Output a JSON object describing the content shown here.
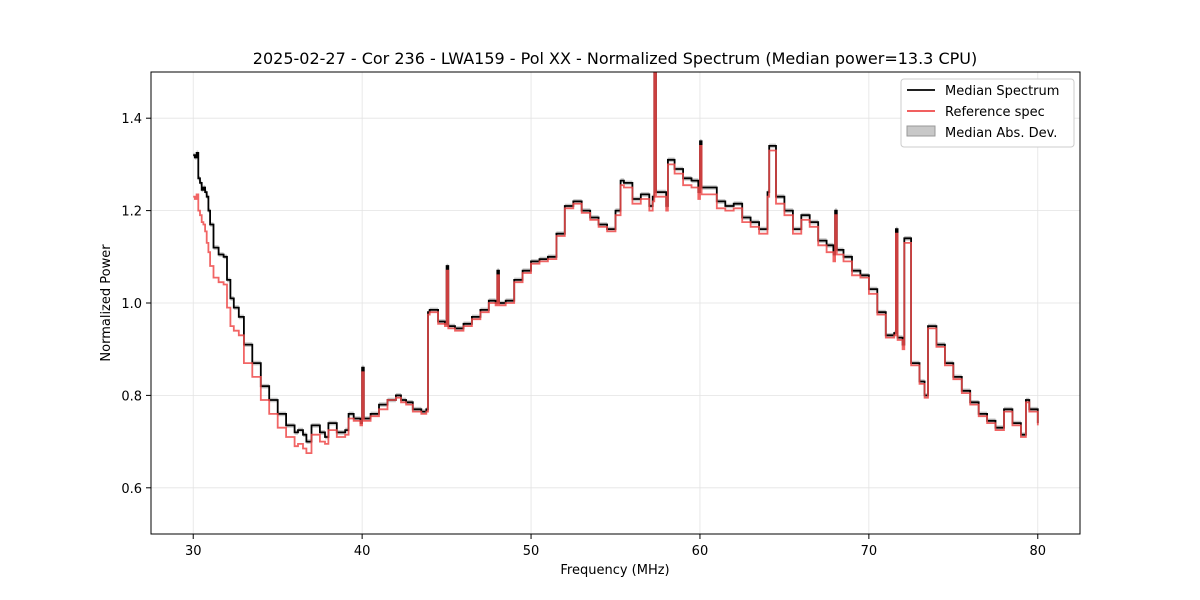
{
  "chart_data": {
    "type": "line",
    "title": "2025-02-27 - Cor 236 - LWA159 - Pol XX - Normalized Spectrum (Median power=13.3 CPU)",
    "xlabel": "Frequency (MHz)",
    "ylabel": "Normalized Power",
    "xlim": [
      27.5,
      82.5
    ],
    "ylim": [
      0.5,
      1.5
    ],
    "xticks": [
      30,
      40,
      50,
      60,
      70,
      80
    ],
    "yticks": [
      0.6,
      0.8,
      1.0,
      1.2,
      1.4
    ],
    "xtick_labels": [
      "30",
      "40",
      "50",
      "60",
      "70",
      "80"
    ],
    "ytick_labels": [
      "0.6",
      "0.8",
      "1.0",
      "1.2",
      "1.4"
    ],
    "grid": true,
    "legend_position": "top-right",
    "mad_halfwidth": 0.005,
    "series": [
      {
        "name": "Median Spectrum",
        "color": "#000000",
        "x": [
          30.0,
          30.1,
          30.2,
          30.3,
          30.4,
          30.5,
          30.6,
          30.7,
          30.8,
          30.9,
          31.0,
          31.2,
          31.5,
          31.8,
          32.0,
          32.2,
          32.4,
          32.7,
          33.0,
          33.5,
          34.0,
          34.5,
          35.0,
          35.5,
          36.0,
          36.2,
          36.5,
          36.7,
          37.0,
          37.5,
          37.8,
          38.0,
          38.5,
          39.0,
          39.2,
          39.5,
          39.9,
          40.0,
          40.1,
          40.5,
          41.0,
          41.5,
          42.0,
          42.3,
          42.6,
          43.0,
          43.5,
          43.8,
          43.9,
          44.0,
          44.5,
          44.9,
          45.0,
          45.1,
          45.5,
          46.0,
          46.5,
          47.0,
          47.5,
          47.9,
          48.0,
          48.1,
          48.5,
          49.0,
          49.5,
          50.0,
          50.5,
          51.0,
          51.5,
          52.0,
          52.5,
          53.0,
          53.5,
          54.0,
          54.5,
          55.0,
          55.3,
          55.5,
          56.0,
          56.5,
          57.0,
          57.2,
          57.3,
          57.4,
          58.0,
          58.1,
          58.5,
          59.0,
          59.5,
          59.9,
          60.0,
          60.1,
          60.5,
          61.0,
          61.5,
          62.0,
          62.5,
          63.0,
          63.5,
          64.0,
          64.1,
          64.5,
          65.0,
          65.5,
          66.0,
          66.5,
          67.0,
          67.5,
          67.9,
          68.0,
          68.1,
          68.5,
          69.0,
          69.5,
          70.0,
          70.5,
          71.0,
          71.5,
          71.6,
          71.7,
          72.0,
          72.1,
          72.5,
          73.0,
          73.3,
          73.5,
          74.0,
          74.5,
          75.0,
          75.5,
          76.0,
          76.5,
          77.0,
          77.5,
          78.0,
          78.5,
          79.0,
          79.3,
          79.5,
          80.0
        ],
        "values": [
          1.32,
          1.315,
          1.325,
          1.27,
          1.26,
          1.245,
          1.25,
          1.24,
          1.23,
          1.2,
          1.17,
          1.12,
          1.105,
          1.1,
          1.05,
          1.01,
          0.99,
          0.97,
          0.91,
          0.87,
          0.82,
          0.79,
          0.76,
          0.735,
          0.72,
          0.725,
          0.715,
          0.7,
          0.735,
          0.72,
          0.71,
          0.74,
          0.72,
          0.725,
          0.76,
          0.75,
          0.74,
          0.86,
          0.75,
          0.76,
          0.78,
          0.79,
          0.8,
          0.79,
          0.785,
          0.77,
          0.765,
          0.77,
          0.98,
          0.985,
          0.96,
          0.955,
          1.08,
          0.95,
          0.945,
          0.955,
          0.97,
          0.985,
          1.005,
          1.0,
          1.07,
          1.0,
          1.005,
          1.05,
          1.07,
          1.09,
          1.095,
          1.1,
          1.15,
          1.21,
          1.22,
          1.2,
          1.185,
          1.17,
          1.16,
          1.2,
          1.265,
          1.26,
          1.225,
          1.235,
          1.21,
          1.23,
          1.5,
          1.24,
          1.21,
          1.31,
          1.29,
          1.27,
          1.265,
          1.24,
          1.35,
          1.25,
          1.25,
          1.22,
          1.21,
          1.215,
          1.185,
          1.175,
          1.16,
          1.24,
          1.34,
          1.23,
          1.2,
          1.16,
          1.19,
          1.175,
          1.135,
          1.125,
          1.105,
          1.2,
          1.115,
          1.1,
          1.07,
          1.06,
          1.03,
          0.98,
          0.93,
          0.935,
          1.16,
          0.925,
          0.91,
          1.14,
          0.87,
          0.83,
          0.8,
          0.95,
          0.91,
          0.87,
          0.84,
          0.81,
          0.785,
          0.76,
          0.745,
          0.73,
          0.77,
          0.74,
          0.715,
          0.79,
          0.77,
          0.74
        ]
      },
      {
        "name": "Reference spec",
        "color": "#ef4a4a",
        "x": [
          30.0,
          30.1,
          30.2,
          30.3,
          30.4,
          30.5,
          30.6,
          30.7,
          30.8,
          30.9,
          31.0,
          31.2,
          31.5,
          31.8,
          32.0,
          32.2,
          32.4,
          32.7,
          33.0,
          33.5,
          34.0,
          34.5,
          35.0,
          35.5,
          36.0,
          36.2,
          36.5,
          36.7,
          37.0,
          37.5,
          37.8,
          38.0,
          38.5,
          39.0,
          39.2,
          39.5,
          39.9,
          40.0,
          40.1,
          40.5,
          41.0,
          41.5,
          42.0,
          42.3,
          42.6,
          43.0,
          43.5,
          43.8,
          43.9,
          44.0,
          44.5,
          44.9,
          45.0,
          45.1,
          45.5,
          46.0,
          46.5,
          47.0,
          47.5,
          47.9,
          48.0,
          48.1,
          48.5,
          49.0,
          49.5,
          50.0,
          50.5,
          51.0,
          51.5,
          52.0,
          52.5,
          53.0,
          53.5,
          54.0,
          54.5,
          55.0,
          55.3,
          55.5,
          56.0,
          56.5,
          57.0,
          57.2,
          57.3,
          57.4,
          58.0,
          58.1,
          58.5,
          59.0,
          59.5,
          59.9,
          60.0,
          60.1,
          60.5,
          61.0,
          61.5,
          62.0,
          62.5,
          63.0,
          63.5,
          64.0,
          64.1,
          64.5,
          65.0,
          65.5,
          66.0,
          66.5,
          67.0,
          67.5,
          67.9,
          68.0,
          68.1,
          68.5,
          69.0,
          69.5,
          70.0,
          70.5,
          71.0,
          71.5,
          71.6,
          71.7,
          72.0,
          72.1,
          72.5,
          73.0,
          73.3,
          73.5,
          74.0,
          74.5,
          75.0,
          75.5,
          76.0,
          76.5,
          77.0,
          77.5,
          78.0,
          78.5,
          79.0,
          79.3,
          79.5,
          80.0
        ],
        "values": [
          1.23,
          1.225,
          1.235,
          1.2,
          1.19,
          1.175,
          1.17,
          1.155,
          1.13,
          1.11,
          1.08,
          1.055,
          1.045,
          1.04,
          0.99,
          0.95,
          0.94,
          0.93,
          0.87,
          0.84,
          0.79,
          0.76,
          0.73,
          0.71,
          0.69,
          0.695,
          0.685,
          0.675,
          0.715,
          0.7,
          0.695,
          0.725,
          0.71,
          0.715,
          0.75,
          0.745,
          0.735,
          0.85,
          0.745,
          0.755,
          0.77,
          0.79,
          0.795,
          0.785,
          0.78,
          0.765,
          0.76,
          0.765,
          0.975,
          0.98,
          0.955,
          0.95,
          1.07,
          0.945,
          0.94,
          0.95,
          0.965,
          0.98,
          1.0,
          0.995,
          1.06,
          0.995,
          1.0,
          1.045,
          1.065,
          1.085,
          1.09,
          1.095,
          1.145,
          1.205,
          1.215,
          1.195,
          1.18,
          1.165,
          1.155,
          1.19,
          1.255,
          1.25,
          1.215,
          1.225,
          1.2,
          1.22,
          1.5,
          1.23,
          1.2,
          1.3,
          1.28,
          1.255,
          1.25,
          1.225,
          1.34,
          1.235,
          1.235,
          1.205,
          1.2,
          1.205,
          1.175,
          1.165,
          1.15,
          1.23,
          1.33,
          1.215,
          1.19,
          1.15,
          1.18,
          1.165,
          1.125,
          1.11,
          1.09,
          1.19,
          1.105,
          1.09,
          1.06,
          1.055,
          1.02,
          0.975,
          0.925,
          0.93,
          1.15,
          0.92,
          0.9,
          1.13,
          0.865,
          0.825,
          0.795,
          0.945,
          0.905,
          0.865,
          0.835,
          0.805,
          0.78,
          0.755,
          0.74,
          0.725,
          0.765,
          0.735,
          0.71,
          0.785,
          0.765,
          0.735
        ]
      }
    ],
    "legend": [
      "Median Spectrum",
      "Reference spec",
      "Median Abs. Dev."
    ]
  }
}
